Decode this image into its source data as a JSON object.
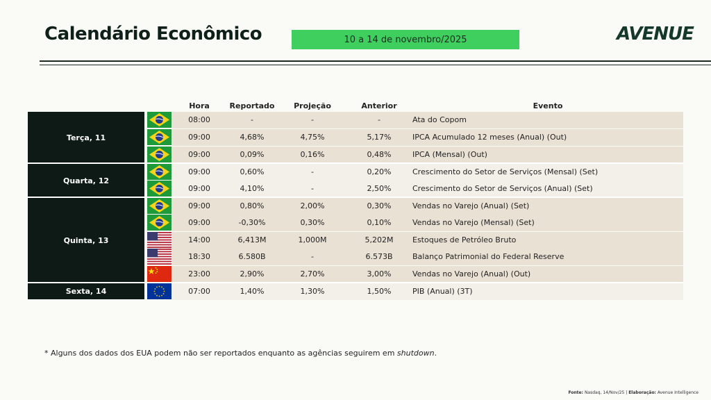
{
  "header": {
    "title": "Calendário Econômico",
    "date_range": "10 a 14 de novembro/2025",
    "logo": "AVENUE"
  },
  "table": {
    "columns": [
      "Hora",
      "Reportado",
      "Projeção",
      "Anterior",
      "Evento"
    ],
    "days": [
      "Terça, 11",
      "Quarta, 12",
      "Quinta, 13",
      "Sexta, 14"
    ],
    "rows": [
      {
        "flag": "brazil-flag-icon",
        "hora": "08:00",
        "reportado": "-",
        "projecao": "-",
        "anterior": "-",
        "evento": "Ata do Copom"
      },
      {
        "flag": "brazil-flag-icon",
        "hora": "09:00",
        "reportado": "4,68%",
        "projecao": "4,75%",
        "anterior": "5,17%",
        "evento": "IPCA Acumulado 12 meses (Anual) (Out)"
      },
      {
        "flag": "brazil-flag-icon",
        "hora": "09:00",
        "reportado": "0,09%",
        "projecao": "0,16%",
        "anterior": "0,48%",
        "evento": "IPCA (Mensal) (Out)"
      },
      {
        "flag": "brazil-flag-icon",
        "hora": "09:00",
        "reportado": "0,60%",
        "projecao": "-",
        "anterior": "0,20%",
        "evento": "Crescimento do Setor de Serviços (Mensal) (Set)"
      },
      {
        "flag": "brazil-flag-icon",
        "hora": "09:00",
        "reportado": "4,10%",
        "projecao": "-",
        "anterior": "2,50%",
        "evento": "Crescimento do Setor de Serviços (Anual) (Set)"
      },
      {
        "flag": "brazil-flag-icon",
        "hora": "09:00",
        "reportado": "0,80%",
        "projecao": "2,00%",
        "anterior": "0,30%",
        "evento": "Vendas no Varejo (Anual) (Set)"
      },
      {
        "flag": "brazil-flag-icon",
        "hora": "09:00",
        "reportado": "-0,30%",
        "projecao": "0,30%",
        "anterior": "0,10%",
        "evento": "Vendas no Varejo (Mensal) (Set)"
      },
      {
        "flag": "usa-flag-icon",
        "hora": "14:00",
        "reportado": "6,413M",
        "projecao": "1,000M",
        "anterior": "5,202M",
        "evento": "Estoques de Petróleo Bruto"
      },
      {
        "flag": "usa-flag-icon",
        "hora": "18:30",
        "reportado": "6.580B",
        "projecao": "-",
        "anterior": "6.573B",
        "evento": "Balanço Patrimonial do Federal Reserve"
      },
      {
        "flag": "china-flag-icon",
        "hora": "23:00",
        "reportado": "2,90%",
        "projecao": "2,70%",
        "anterior": "3,00%",
        "evento": "Vendas no Varejo (Anual) (Out)"
      },
      {
        "flag": "eu-flag-icon",
        "hora": "07:00",
        "reportado": "1,40%",
        "projecao": "1,30%",
        "anterior": "1,50%",
        "evento": "PIB (Anual) (3T)"
      }
    ]
  },
  "footer": {
    "note_prefix": "* Alguns dos dados dos EUA podem não ser reportados enquanto as agências seguirem em ",
    "note_emph": "shutdown",
    "note_suffix": ".",
    "source_label": "Fonte:",
    "source_text": " Nasdaq, 14/Nov/25 | ",
    "elab_label": "Elaboração:",
    "elab_text": " Avenue Intelligence"
  },
  "colors": {
    "badge": "#3ecf5f",
    "day_bg": "#0d1a16",
    "row_shade": "#eae1d5",
    "row_light": "#f3efe9"
  }
}
